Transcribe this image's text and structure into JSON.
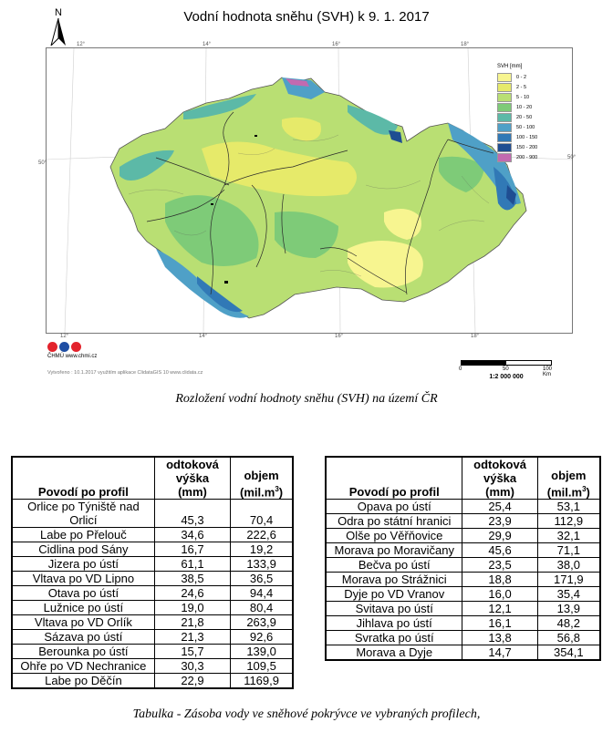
{
  "map": {
    "title": "Vodní hodnota sněhu (SVH) k 9. 1. 2017",
    "north": "N",
    "grid_top": [
      "12°",
      "14°",
      "16°",
      "18°"
    ],
    "grid_bottom": [
      "12°",
      "14°",
      "16°",
      "18°"
    ],
    "grid_side": "50°",
    "legend_title": "SVH [mm]",
    "legend": [
      {
        "label": "0 - 2",
        "color": "#f7f590"
      },
      {
        "label": "2 - 5",
        "color": "#e6ea6a"
      },
      {
        "label": "5 - 10",
        "color": "#b9df73"
      },
      {
        "label": "10 - 20",
        "color": "#7ecb78"
      },
      {
        "label": "20 - 50",
        "color": "#5cb9a7"
      },
      {
        "label": "50 - 100",
        "color": "#4fa0c7"
      },
      {
        "label": "100 - 150",
        "color": "#3179b6"
      },
      {
        "label": "150 - 200",
        "color": "#1f4e92"
      },
      {
        "label": "200 - 900",
        "color": "#c26ab0"
      }
    ],
    "agency": "ČHMÚ www.chmi.cz",
    "made": "Vytvořeno : 10.1.2017 využitím aplikace ClidataGIS 10 www.clidata.cz",
    "scale_numbers": [
      "0",
      "50",
      "100 Km"
    ],
    "scale_ratio": "1:2 000 000",
    "caption": "Rozložení vodní hodnoty sněhu (SVH) na území ČR"
  },
  "table": {
    "headers": {
      "profil": "Povodí po profil",
      "vyska_1": "odtoková",
      "vyska_2": "výška",
      "vyska_3": "(mm)",
      "objem_1": "objem",
      "objem_2": "(mil.m",
      "objem_sup": "3",
      "objem_3": ")"
    },
    "left": [
      {
        "name": "Orlice po Týniště nad Orlicí",
        "vyska": "45,3",
        "objem": "70,4"
      },
      {
        "name": "Labe po Přelouč",
        "vyska": "34,6",
        "objem": "222,6"
      },
      {
        "name": "Cidlina pod Sány",
        "vyska": "16,7",
        "objem": "19,2"
      },
      {
        "name": "Jizera po ústí",
        "vyska": "61,1",
        "objem": "133,9"
      },
      {
        "name": "Vltava po VD Lipno",
        "vyska": "38,5",
        "objem": "36,5"
      },
      {
        "name": "Otava po ústí",
        "vyska": "24,6",
        "objem": "94,4"
      },
      {
        "name": "Lužnice po ústí",
        "vyska": "19,0",
        "objem": "80,4"
      },
      {
        "name": "Vltava po VD Orlík",
        "vyska": "21,8",
        "objem": "263,9"
      },
      {
        "name": "Sázava po ústí",
        "vyska": "21,3",
        "objem": "92,6"
      },
      {
        "name": "Berounka po ústí",
        "vyska": "15,7",
        "objem": "139,0"
      },
      {
        "name": "Ohře po VD Nechranice",
        "vyska": "30,3",
        "objem": "109,5"
      },
      {
        "name": "Labe po Děčín",
        "vyska": "22,9",
        "objem": "1169,9"
      }
    ],
    "right": [
      {
        "name": "Opava po ústí",
        "vyska": "25,4",
        "objem": "53,1"
      },
      {
        "name": "Odra po státní hranici",
        "vyska": "23,9",
        "objem": "112,9"
      },
      {
        "name": "Olše po Věřňovice",
        "vyska": "29,9",
        "objem": "32,1"
      },
      {
        "name": "Morava po Moravičany",
        "vyska": "45,6",
        "objem": "71,1"
      },
      {
        "name": "Bečva po ústí",
        "vyska": "23,5",
        "objem": "38,0"
      },
      {
        "name": "Morava po Strážnici",
        "vyska": "18,8",
        "objem": "171,9"
      },
      {
        "name": "Dyje po VD Vranov",
        "vyska": "16,0",
        "objem": "35,4"
      },
      {
        "name": "Svitava po ústí",
        "vyska": "12,1",
        "objem": "13,9"
      },
      {
        "name": "Jihlava po ústí",
        "vyska": "16,1",
        "objem": "48,2"
      },
      {
        "name": "Svratka po ústí",
        "vyska": "13,8",
        "objem": "56,8"
      },
      {
        "name": "Morava a Dyje",
        "vyska": "14,7",
        "objem": "354,1"
      }
    ],
    "caption": "Tabulka - Zásoba vody ve sněhové pokrývce ve vybraných profilech,"
  }
}
